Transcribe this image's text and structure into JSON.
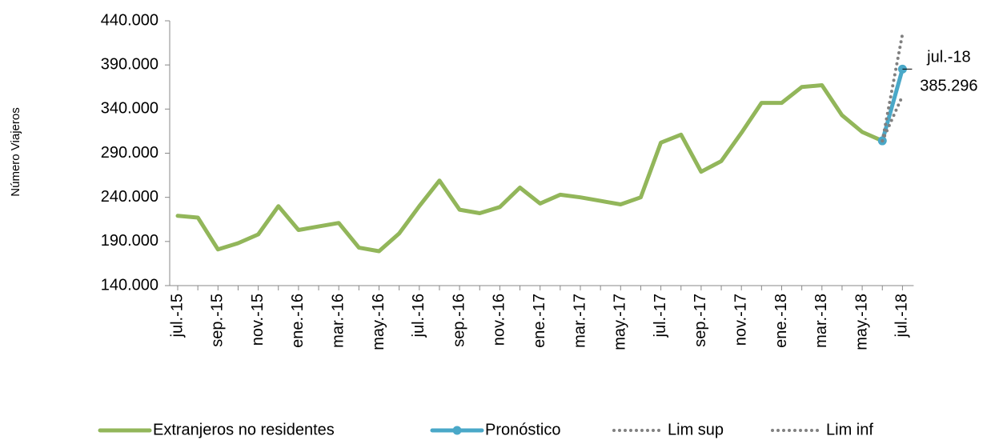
{
  "chart_data": {
    "type": "line",
    "y_label": "Número Viajeros",
    "categories": [
      "jul.-15",
      null,
      "sep.-15",
      null,
      "nov.-15",
      null,
      "ene.-16",
      null,
      "mar.-16",
      null,
      "may.-16",
      null,
      "jul.-16",
      null,
      "sep.-16",
      null,
      "nov.-16",
      null,
      "ene.-17",
      null,
      "mar.-17",
      null,
      "may.-17",
      null,
      "jul.-17",
      null,
      "sep.-17",
      null,
      "nov.-17",
      null,
      "ene.-18",
      null,
      "mar.-18",
      null,
      "may.-18",
      null,
      "jul.-18"
    ],
    "series": [
      {
        "name": "Extranjeros no residentes",
        "color": "#92b65a",
        "line_style": "solid",
        "values": [
          219000,
          217000,
          181000,
          188000,
          198000,
          230000,
          203000,
          207000,
          211000,
          183000,
          179000,
          199000,
          230000,
          259000,
          226000,
          222000,
          229000,
          251000,
          233000,
          243000,
          240000,
          236000,
          232000,
          240000,
          302000,
          311000,
          269000,
          281000,
          313000,
          347000,
          347000,
          365000,
          367000,
          333000,
          314000,
          304000,
          null
        ]
      },
      {
        "name": "Pronóstico",
        "color": "#4aa8c8",
        "line_style": "solid",
        "marker": "circle",
        "values": [
          null,
          null,
          null,
          null,
          null,
          null,
          null,
          null,
          null,
          null,
          null,
          null,
          null,
          null,
          null,
          null,
          null,
          null,
          null,
          null,
          null,
          null,
          null,
          null,
          null,
          null,
          null,
          null,
          null,
          null,
          null,
          null,
          null,
          null,
          null,
          304000,
          385296
        ],
        "value_labels": [
          null,
          null,
          null,
          null,
          null,
          null,
          null,
          null,
          null,
          null,
          null,
          null,
          null,
          null,
          null,
          null,
          null,
          null,
          null,
          null,
          null,
          null,
          null,
          null,
          null,
          null,
          null,
          null,
          null,
          null,
          null,
          null,
          null,
          null,
          null,
          null,
          "385.296"
        ]
      },
      {
        "name": "Lim sup",
        "color": "#808080",
        "line_style": "dotted",
        "values": [
          null,
          null,
          null,
          null,
          null,
          null,
          null,
          null,
          null,
          null,
          null,
          null,
          null,
          null,
          null,
          null,
          null,
          null,
          null,
          null,
          null,
          null,
          null,
          null,
          null,
          null,
          null,
          null,
          null,
          null,
          null,
          null,
          null,
          null,
          null,
          304000,
          425000
        ]
      },
      {
        "name": "Lim inf",
        "color": "#808080",
        "line_style": "dotted",
        "values": [
          null,
          null,
          null,
          null,
          null,
          null,
          null,
          null,
          null,
          null,
          null,
          null,
          null,
          null,
          null,
          null,
          null,
          null,
          null,
          null,
          null,
          null,
          null,
          null,
          null,
          null,
          null,
          null,
          null,
          null,
          null,
          null,
          null,
          null,
          null,
          304000,
          355000
        ]
      }
    ],
    "ylim": [
      140000,
      440000
    ],
    "yticks": [
      {
        "value": 140000,
        "label": "140.000"
      },
      {
        "value": 190000,
        "label": "190.000"
      },
      {
        "value": 240000,
        "label": "240.000"
      },
      {
        "value": 290000,
        "label": "290.000"
      },
      {
        "value": 340000,
        "label": "340.000"
      },
      {
        "value": 390000,
        "label": "390.000"
      },
      {
        "value": 440000,
        "label": "440.000"
      }
    ],
    "grid": false
  }
}
